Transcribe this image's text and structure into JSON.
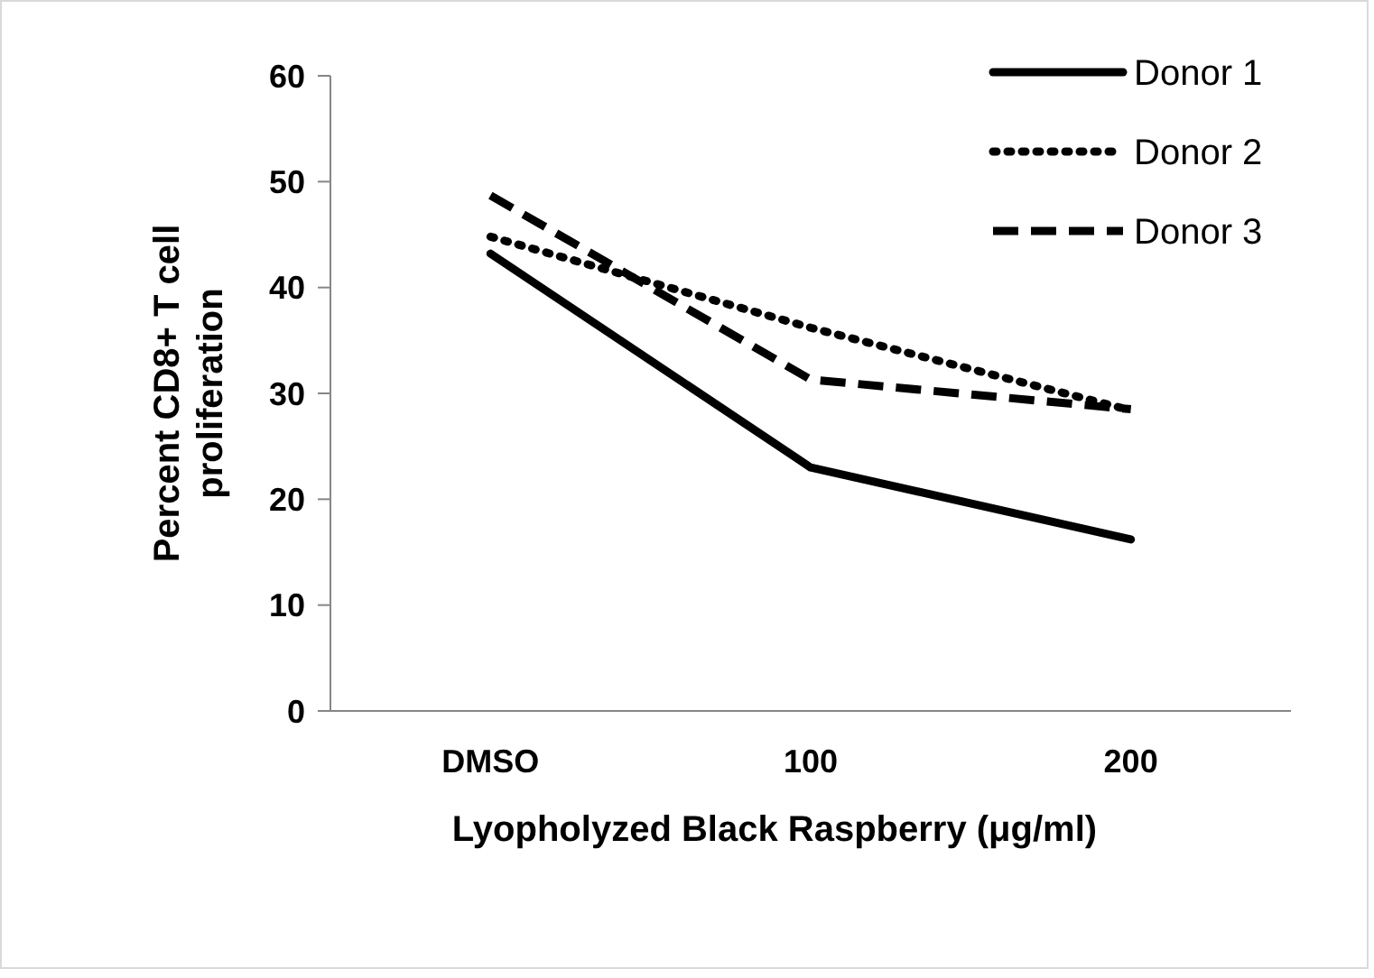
{
  "chart_data": {
    "type": "line",
    "xlabel": "Lyopholyzed Black Raspberry (μg/ml)",
    "ylabel": "Percent CD8+ T cell proliferation",
    "categories": [
      "DMSO",
      "100",
      "200"
    ],
    "ylim": [
      0,
      60
    ],
    "yticks": [
      0,
      10,
      20,
      30,
      40,
      50,
      60
    ],
    "grid": false,
    "legend": "top right",
    "marker": "none",
    "series": [
      {
        "name": "Donor 1",
        "color": "#000000",
        "line_style": "solid",
        "values": [
          43.2,
          23.0,
          16.2
        ]
      },
      {
        "name": "Donor 2",
        "color": "#000000",
        "line_style": "dotted",
        "values": [
          44.8,
          36.2,
          28.4
        ]
      },
      {
        "name": "Donor 3",
        "color": "#000000",
        "line_style": "dashed",
        "values": [
          48.7,
          31.3,
          28.5
        ]
      }
    ]
  }
}
